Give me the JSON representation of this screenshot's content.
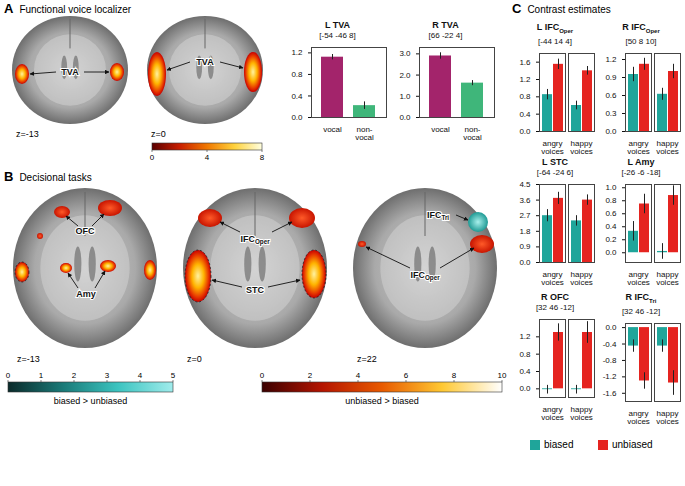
{
  "panels": [
    {
      "letter": "A",
      "title": "Functional voice localizer",
      "slices": [
        {
          "label": "z=-13",
          "regions": [
            {
              "text": "TVA"
            }
          ]
        },
        {
          "label": "z=0",
          "regions": [
            {
              "text": "TVA"
            }
          ]
        }
      ]
    },
    {
      "letter": "B",
      "title": "Decisional tasks",
      "slices": [
        {
          "label": "z=-13",
          "regions": [
            {
              "text": "OFC"
            },
            {
              "text": "Amy"
            }
          ]
        },
        {
          "label": "z=0",
          "regions": [
            {
              "text": "IFCOper",
              "subscript": "Oper"
            },
            {
              "text": "STC"
            }
          ]
        },
        {
          "label": "z=22",
          "regions": [
            {
              "text": "IFCTri",
              "subscript": "Tri"
            },
            {
              "text": "IFCOper",
              "subscript": "Oper"
            }
          ]
        }
      ]
    },
    {
      "letter": "C",
      "title": "Contrast estimates"
    }
  ],
  "colorbars": [
    {
      "range": [
        0,
        8
      ],
      "ticks": [
        0,
        4,
        8
      ],
      "colors": [
        "#5a0000",
        "#c81e00",
        "#f07800",
        "#ffd23c",
        "#ffffe0"
      ]
    },
    {
      "label": "biased > unbiased",
      "range": [
        0,
        5
      ],
      "ticks": [
        0,
        1,
        2,
        3,
        4,
        5
      ],
      "colors": [
        "#0a2a2a",
        "#1a7a78",
        "#3cc4c0",
        "#a0ecec"
      ]
    },
    {
      "label": "unbiased > biased",
      "range": [
        0,
        10
      ],
      "ticks": [
        0,
        2,
        4,
        6,
        8,
        10
      ],
      "colors": [
        "#3a0000",
        "#b41400",
        "#e85a00",
        "#ffc832",
        "#ffffff"
      ]
    }
  ],
  "chart_data": [
    {
      "type": "bar",
      "title": "L TVA",
      "subtitle": "[-54 -46 8]",
      "categories": [
        "vocal",
        "non-vocal"
      ],
      "values": [
        1.12,
        0.22
      ],
      "errors": [
        0.05,
        0.07
      ],
      "colors": [
        "#a3246b",
        "#3fb67a"
      ],
      "ylim": [
        0,
        1.3
      ],
      "yticks": [
        {
          "value": 0,
          "label": "0.0"
        },
        0.4,
        0.8,
        1.2
      ]
    },
    {
      "type": "bar",
      "title": "R TVA",
      "subtitle": "[66 -22 4]",
      "categories": [
        "vocal",
        "non-vocal"
      ],
      "values": [
        2.9,
        1.62
      ],
      "errors": [
        0.15,
        0.12
      ],
      "colors": [
        "#a3246b",
        "#3fb67a"
      ],
      "ylim": [
        0,
        3.3
      ],
      "yticks": [
        {
          "value": 0,
          "label": "0.0"
        },
        {
          "value": 1,
          "label": "1.0"
        },
        {
          "value": 2,
          "label": "2.0"
        },
        {
          "value": 3,
          "label": "3.0"
        }
      ]
    },
    {
      "type": "bar",
      "title": "L IFCOper",
      "title_subscript": "Oper",
      "subtitle": "[-44 14 4]",
      "categories": [
        "angry voices",
        "happy voices"
      ],
      "series": [
        {
          "name": "biased",
          "color": "#1fa59a",
          "values": [
            0.85,
            0.6
          ],
          "errors": [
            0.12,
            0.1
          ]
        },
        {
          "name": "unbiased",
          "color": "#e52420",
          "values": [
            1.55,
            1.4
          ],
          "errors": [
            0.12,
            0.1
          ]
        }
      ],
      "ylim": [
        0,
        1.8
      ],
      "yticks": [
        {
          "value": 0,
          "label": "0.0"
        },
        0.4,
        0.8,
        1.2,
        1.6
      ],
      "legend": "bottom"
    },
    {
      "type": "bar",
      "title": "R IFCOper",
      "title_subscript": "Oper",
      "subtitle": "[50 8 10]",
      "categories": [
        "angry voices",
        "happy voices"
      ],
      "series": [
        {
          "name": "biased",
          "color": "#1fa59a",
          "values": [
            0.95,
            0.62
          ],
          "errors": [
            0.12,
            0.1
          ]
        },
        {
          "name": "unbiased",
          "color": "#e52420",
          "values": [
            1.12,
            1.0
          ],
          "errors": [
            0.1,
            0.12
          ]
        }
      ],
      "ylim": [
        0,
        1.3
      ],
      "yticks": [
        {
          "value": 0,
          "label": "0.0"
        },
        0.3,
        0.6,
        0.9,
        1.2
      ]
    },
    {
      "type": "bar",
      "title": "L STC",
      "subtitle": "[-64 -24 6]",
      "categories": [
        "angry voices",
        "happy voices"
      ],
      "series": [
        {
          "name": "biased",
          "color": "#1fa59a",
          "values": [
            2.7,
            2.4
          ],
          "errors": [
            0.35,
            0.3
          ]
        },
        {
          "name": "unbiased",
          "color": "#e52420",
          "values": [
            3.7,
            3.6
          ],
          "errors": [
            0.35,
            0.3
          ]
        }
      ],
      "ylim": [
        0,
        4.5
      ],
      "yticks": [
        {
          "value": 0,
          "label": "0.0"
        },
        0.9,
        1.8,
        2.7,
        3.6,
        4.5
      ]
    },
    {
      "type": "bar",
      "title": "L Amy",
      "subtitle": "[-26 -6 -18]",
      "categories": [
        "angry voices",
        "happy voices"
      ],
      "series": [
        {
          "name": "biased",
          "color": "#1fa59a",
          "values": [
            0.33,
            0.02
          ],
          "errors": [
            0.15,
            0.12
          ]
        },
        {
          "name": "unbiased",
          "color": "#e52420",
          "values": [
            0.75,
            0.88
          ],
          "errors": [
            0.15,
            0.15
          ]
        }
      ],
      "ylim": [
        -0.15,
        1.05
      ],
      "yticks": [
        {
          "value": 0,
          "label": "0.0"
        },
        0.2,
        0.4,
        0.6,
        0.8,
        {
          "value": 1,
          "label": "1.0"
        }
      ]
    },
    {
      "type": "bar",
      "title": "R OFC",
      "subtitle": "[32 46 -12]",
      "categories": [
        "angry voices",
        "happy voices"
      ],
      "series": [
        {
          "name": "biased",
          "color": "#1fa59a",
          "values": [
            -0.02,
            -0.02
          ],
          "errors": [
            0.1,
            0.1
          ]
        },
        {
          "name": "unbiased",
          "color": "#e52420",
          "values": [
            1.3,
            1.3
          ],
          "errors": [
            0.2,
            0.25
          ]
        }
      ],
      "ylim": [
        -0.2,
        1.6
      ],
      "yticks": [
        {
          "value": 0,
          "label": "0.0"
        },
        0.4,
        0.8,
        1.2
      ]
    },
    {
      "type": "bar",
      "title": "R IFCTri",
      "title_subscript": "Tri",
      "subtitle": "[32 46 -12]",
      "categories": [
        "angry voices",
        "happy voices"
      ],
      "series": [
        {
          "name": "biased",
          "color": "#1fa59a",
          "values": [
            -0.45,
            -0.45
          ],
          "errors": [
            0.15,
            0.15
          ]
        },
        {
          "name": "unbiased",
          "color": "#e52420",
          "values": [
            -1.3,
            -1.35
          ],
          "errors": [
            0.2,
            0.3
          ]
        }
      ],
      "ylim": [
        -1.8,
        0.1
      ],
      "yticks": [
        {
          "value": 0,
          "label": "0.0"
        },
        -0.4,
        -0.8,
        -1.2,
        -1.6
      ]
    }
  ]
}
